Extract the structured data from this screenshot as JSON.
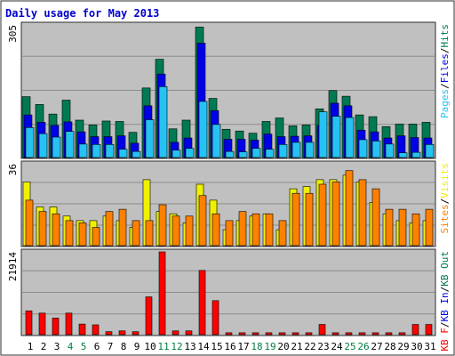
{
  "title": "Daily usage for May 2013",
  "colors": {
    "background": "#ffffff",
    "frame": "#2e2e2e",
    "panel": "#c0c0c0",
    "grid": "#8c8c8c",
    "title": "#0000cc",
    "hits": "#007a53",
    "files": "#0000e6",
    "pages": "#26c2f2",
    "visits": "#f0f000",
    "sites": "#ff8000",
    "kbf": "#ff0000",
    "kbin": "#0000e6",
    "kbout": "#007a53",
    "weekend_day": "#008040",
    "weekday": "#000000"
  },
  "chart_data": [
    {
      "type": "bar",
      "name": "hits-files-pages",
      "x": [
        1,
        2,
        3,
        4,
        5,
        6,
        7,
        8,
        9,
        10,
        11,
        12,
        13,
        14,
        15,
        16,
        17,
        18,
        19,
        20,
        21,
        22,
        23,
        24,
        25,
        26,
        27,
        28,
        29,
        30,
        31
      ],
      "weekend_days": [
        4,
        5,
        11,
        12,
        18,
        19,
        25,
        26
      ],
      "ymax_label": "305",
      "ylim": [
        0,
        305
      ],
      "legend": [
        "Pages",
        "/",
        "Files",
        "/",
        "Hits"
      ],
      "series": [
        {
          "name": "Hits",
          "values": [
            140,
            122,
            100,
            132,
            86,
            75,
            84,
            83,
            58,
            160,
            226,
            66,
            86,
            300,
            136,
            65,
            61,
            56,
            83,
            91,
            73,
            75,
            112,
            154,
            141,
            98,
            94,
            71,
            77,
            77,
            81
          ]
        },
        {
          "name": "Files",
          "values": [
            98,
            81,
            74,
            82,
            59,
            48,
            48,
            50,
            33,
            119,
            192,
            35,
            45,
            263,
            108,
            42,
            42,
            40,
            54,
            48,
            49,
            50,
            74,
            125,
            119,
            63,
            59,
            45,
            50,
            46,
            45
          ]
        },
        {
          "name": "Pages",
          "values": [
            69,
            55,
            47,
            60,
            31,
            30,
            30,
            19,
            14,
            87,
            163,
            17,
            21,
            129,
            76,
            14,
            13,
            21,
            19,
            30,
            35,
            35,
            105,
            95,
            92,
            41,
            38,
            31,
            11,
            12,
            30
          ]
        }
      ]
    },
    {
      "type": "bar",
      "name": "visits-sites",
      "x": [
        1,
        2,
        3,
        4,
        5,
        6,
        7,
        8,
        9,
        10,
        11,
        12,
        13,
        14,
        15,
        16,
        17,
        18,
        19,
        20,
        21,
        22,
        23,
        24,
        25,
        26,
        27,
        28,
        29,
        30,
        31
      ],
      "ymax_label": "36",
      "ylim": [
        0,
        36
      ],
      "legend": [
        "Sites",
        "/",
        "Visits"
      ],
      "series": [
        {
          "name": "Visits",
          "values": [
            28,
            17,
            17,
            13,
            11,
            11,
            13,
            11,
            8,
            29,
            15,
            14,
            10,
            27,
            20,
            7,
            11,
            13,
            14,
            7,
            25,
            26,
            29,
            29,
            31,
            28,
            19,
            14,
            11,
            10,
            11
          ]
        },
        {
          "name": "Sites",
          "values": [
            20,
            15,
            14,
            11,
            10,
            8,
            15,
            16,
            11,
            11,
            18,
            13,
            13,
            22,
            14,
            11,
            15,
            14,
            14,
            11,
            23,
            23,
            27,
            28,
            33,
            29,
            25,
            16,
            16,
            14,
            16
          ]
        }
      ]
    },
    {
      "type": "bar",
      "name": "kb",
      "x": [
        1,
        2,
        3,
        4,
        5,
        6,
        7,
        8,
        9,
        10,
        11,
        12,
        13,
        14,
        15,
        16,
        17,
        18,
        19,
        20,
        21,
        22,
        23,
        24,
        25,
        26,
        27,
        28,
        29,
        30,
        31
      ],
      "ymax_label": "21914",
      "ylim": [
        0,
        21914
      ],
      "legend": [
        "KB F",
        "/",
        "KB In",
        "/",
        "KB Out"
      ],
      "series": [
        {
          "name": "KB F",
          "values": [
            6300,
            5700,
            4400,
            5700,
            2800,
            2600,
            790,
            1000,
            790,
            10000,
            21914,
            1000,
            1000,
            17000,
            9000,
            500,
            500,
            500,
            500,
            500,
            500,
            500,
            2700,
            500,
            500,
            500,
            500,
            500,
            500,
            2700,
            2700
          ]
        }
      ]
    }
  ],
  "days": [
    "1",
    "2",
    "3",
    "4",
    "5",
    "6",
    "7",
    "8",
    "9",
    "10",
    "11",
    "12",
    "13",
    "14",
    "15",
    "16",
    "17",
    "18",
    "19",
    "20",
    "21",
    "22",
    "23",
    "24",
    "25",
    "26",
    "27",
    "28",
    "29",
    "30",
    "31"
  ]
}
